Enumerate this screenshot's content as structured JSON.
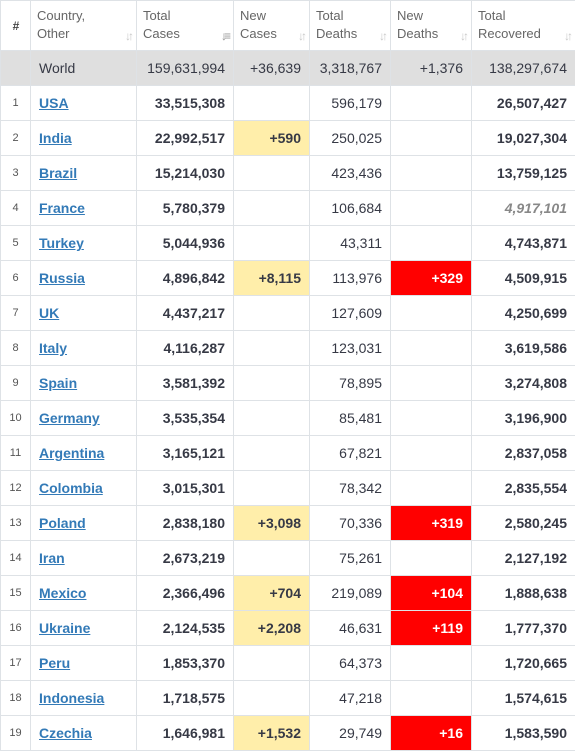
{
  "headers": [
    {
      "key": "num",
      "label": "#",
      "sortable": false
    },
    {
      "key": "country",
      "line1": "Country,",
      "line2": "Other",
      "sortable": true
    },
    {
      "key": "total_cases",
      "line1": "Total",
      "line2": "Cases",
      "sortable": true,
      "active": true
    },
    {
      "key": "new_cases",
      "line1": "New",
      "line2": "Cases",
      "sortable": true
    },
    {
      "key": "total_deaths",
      "line1": "Total",
      "line2": "Deaths",
      "sortable": true
    },
    {
      "key": "new_deaths",
      "line1": "New",
      "line2": "Deaths",
      "sortable": true
    },
    {
      "key": "total_recovered",
      "line1": "Total",
      "line2": "Recovered",
      "sortable": true
    }
  ],
  "world": {
    "country": "World",
    "total_cases": "159,631,994",
    "new_cases": "+36,639",
    "total_deaths": "3,318,767",
    "new_deaths": "+1,376",
    "total_recovered": "138,297,674"
  },
  "rows": [
    {
      "num": "1",
      "country": "USA",
      "total_cases": "33,515,308",
      "new_cases": "",
      "total_deaths": "596,179",
      "new_deaths": "",
      "total_recovered": "26,507,427"
    },
    {
      "num": "2",
      "country": "India",
      "total_cases": "22,992,517",
      "new_cases": "+590",
      "total_deaths": "250,025",
      "new_deaths": "",
      "total_recovered": "19,027,304"
    },
    {
      "num": "3",
      "country": "Brazil",
      "total_cases": "15,214,030",
      "new_cases": "",
      "total_deaths": "423,436",
      "new_deaths": "",
      "total_recovered": "13,759,125"
    },
    {
      "num": "4",
      "country": "France",
      "total_cases": "5,780,379",
      "new_cases": "",
      "total_deaths": "106,684",
      "new_deaths": "",
      "total_recovered": "4,917,101",
      "recovered_estimated": true
    },
    {
      "num": "5",
      "country": "Turkey",
      "total_cases": "5,044,936",
      "new_cases": "",
      "total_deaths": "43,311",
      "new_deaths": "",
      "total_recovered": "4,743,871"
    },
    {
      "num": "6",
      "country": "Russia",
      "total_cases": "4,896,842",
      "new_cases": "+8,115",
      "total_deaths": "113,976",
      "new_deaths": "+329",
      "total_recovered": "4,509,915"
    },
    {
      "num": "7",
      "country": "UK",
      "total_cases": "4,437,217",
      "new_cases": "",
      "total_deaths": "127,609",
      "new_deaths": "",
      "total_recovered": "4,250,699"
    },
    {
      "num": "8",
      "country": "Italy",
      "total_cases": "4,116,287",
      "new_cases": "",
      "total_deaths": "123,031",
      "new_deaths": "",
      "total_recovered": "3,619,586"
    },
    {
      "num": "9",
      "country": "Spain",
      "total_cases": "3,581,392",
      "new_cases": "",
      "total_deaths": "78,895",
      "new_deaths": "",
      "total_recovered": "3,274,808"
    },
    {
      "num": "10",
      "country": "Germany",
      "total_cases": "3,535,354",
      "new_cases": "",
      "total_deaths": "85,481",
      "new_deaths": "",
      "total_recovered": "3,196,900"
    },
    {
      "num": "11",
      "country": "Argentina",
      "total_cases": "3,165,121",
      "new_cases": "",
      "total_deaths": "67,821",
      "new_deaths": "",
      "total_recovered": "2,837,058"
    },
    {
      "num": "12",
      "country": "Colombia",
      "total_cases": "3,015,301",
      "new_cases": "",
      "total_deaths": "78,342",
      "new_deaths": "",
      "total_recovered": "2,835,554"
    },
    {
      "num": "13",
      "country": "Poland",
      "total_cases": "2,838,180",
      "new_cases": "+3,098",
      "total_deaths": "70,336",
      "new_deaths": "+319",
      "total_recovered": "2,580,245"
    },
    {
      "num": "14",
      "country": "Iran",
      "total_cases": "2,673,219",
      "new_cases": "",
      "total_deaths": "75,261",
      "new_deaths": "",
      "total_recovered": "2,127,192"
    },
    {
      "num": "15",
      "country": "Mexico",
      "total_cases": "2,366,496",
      "new_cases": "+704",
      "total_deaths": "219,089",
      "new_deaths": "+104",
      "total_recovered": "1,888,638"
    },
    {
      "num": "16",
      "country": "Ukraine",
      "total_cases": "2,124,535",
      "new_cases": "+2,208",
      "total_deaths": "46,631",
      "new_deaths": "+119",
      "total_recovered": "1,777,370"
    },
    {
      "num": "17",
      "country": "Peru",
      "total_cases": "1,853,370",
      "new_cases": "",
      "total_deaths": "64,373",
      "new_deaths": "",
      "total_recovered": "1,720,665"
    },
    {
      "num": "18",
      "country": "Indonesia",
      "total_cases": "1,718,575",
      "new_cases": "",
      "total_deaths": "47,218",
      "new_deaths": "",
      "total_recovered": "1,574,615"
    },
    {
      "num": "19",
      "country": "Czechia",
      "total_cases": "1,646,981",
      "new_cases": "+1,532",
      "total_deaths": "29,749",
      "new_deaths": "+16",
      "total_recovered": "1,583,590"
    }
  ],
  "colors": {
    "new_cases_highlight": "#ffeeaa",
    "new_deaths_highlight": "#ff0000",
    "world_row": "#dfdfdf",
    "link": "#337ab7"
  },
  "icons": {
    "sort": "sort-arrows-icon",
    "sort_active": "sort-desc-icon"
  }
}
